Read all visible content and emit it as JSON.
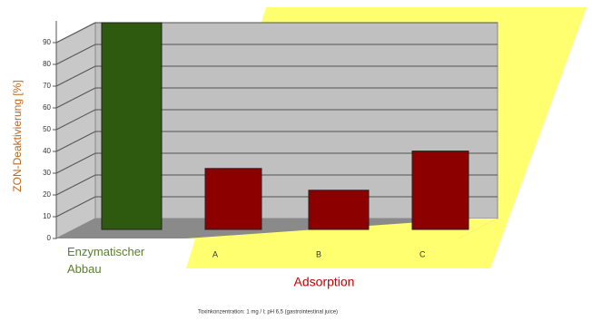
{
  "chart_data": {
    "type": "bar3d",
    "y_label": "ZON-Deaktivierung [%]",
    "categories": [
      "Enzymatischer Abbau",
      "A",
      "B",
      "C"
    ],
    "values": [
      95,
      28,
      18,
      36
    ],
    "colors": [
      "#2d5a0e",
      "#8c0000",
      "#8c0000",
      "#8c0000"
    ],
    "group_label": "Adsorption",
    "note": "Toxinkonzentration: 1 mg / l; pH 6,5 (gastrointestinal juice)",
    "ylim": [
      0,
      100
    ],
    "yticks": [
      0,
      10,
      20,
      30,
      40,
      50,
      60,
      70,
      80,
      90
    ],
    "grid": true
  }
}
